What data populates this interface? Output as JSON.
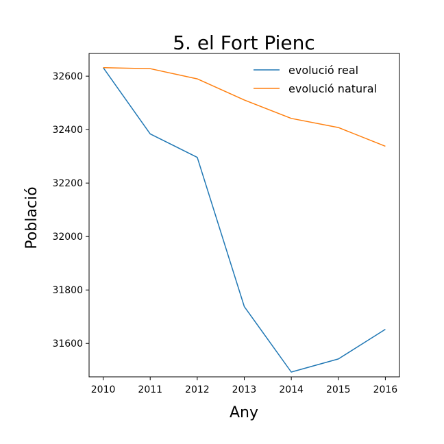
{
  "chart_data": {
    "type": "line",
    "title": "5. el Fort Pienc",
    "xlabel": "Any",
    "ylabel": "Població",
    "x": [
      2010,
      2011,
      2012,
      2013,
      2014,
      2015,
      2016
    ],
    "xticks": [
      "2010",
      "2011",
      "2012",
      "2013",
      "2014",
      "2015",
      "2016"
    ],
    "yticks": [
      "31600",
      "31800",
      "32000",
      "32200",
      "32400",
      "32600"
    ],
    "ytick_values": [
      31600,
      31800,
      32000,
      32200,
      32400,
      32600
    ],
    "xlim": [
      2009.7,
      2016.3
    ],
    "ylim": [
      31475,
      32685
    ],
    "grid": false,
    "legend_position": "top-right",
    "series": [
      {
        "name": "evolució real",
        "color": "#1f77b4",
        "values": [
          32632,
          32384,
          32296,
          31738,
          31493,
          31542,
          31653
        ]
      },
      {
        "name": "evolució natural",
        "color": "#ff7f0e",
        "values": [
          32632,
          32628,
          32590,
          32511,
          32442,
          32408,
          32338
        ]
      }
    ]
  }
}
